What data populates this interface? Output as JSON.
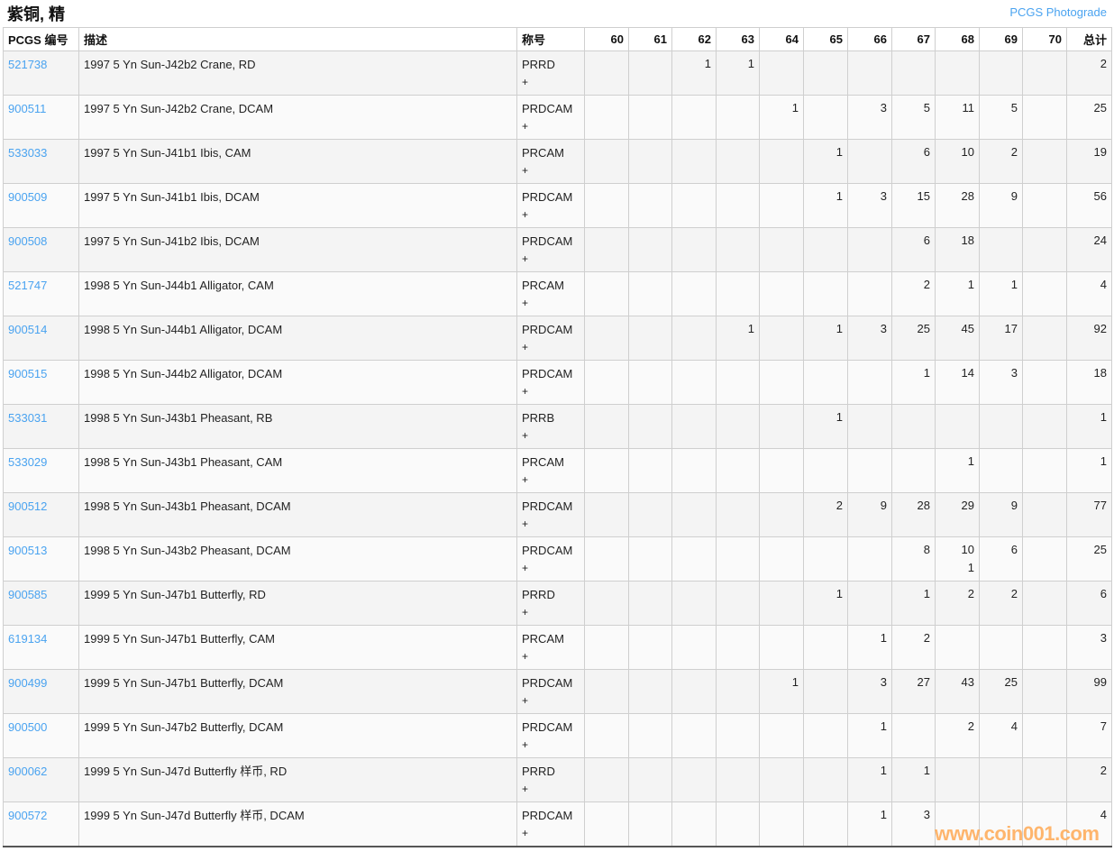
{
  "page": {
    "title": "紫铜, 精",
    "photograde_link": "PCGS Photograde",
    "watermark": "www.coin001.com"
  },
  "colors": {
    "link": "#4aa3f0",
    "row_odd": "#f4f4f4",
    "row_even": "#fafafa",
    "watermark": "#ffa54a"
  },
  "table": {
    "headers": {
      "pcgs_no": "PCGS 编号",
      "description": "描述",
      "designation": "称号",
      "grades": [
        "60",
        "61",
        "62",
        "63",
        "64",
        "65",
        "66",
        "67",
        "68",
        "69",
        "70"
      ],
      "total": "总计"
    },
    "plus_label": "+",
    "rows": [
      {
        "id": "521738",
        "desc": "1997 5 Yn Sun-J42b2 Crane, RD",
        "desig": "PRRD",
        "grades": [
          "",
          "",
          "1",
          "1",
          "",
          "",
          "",
          "",
          "",
          "",
          ""
        ],
        "total": "2"
      },
      {
        "id": "900511",
        "desc": "1997 5 Yn Sun-J42b2 Crane, DCAM",
        "desig": "PRDCAM",
        "grades": [
          "",
          "",
          "",
          "",
          "1",
          "",
          "3",
          "5",
          "11",
          "5",
          ""
        ],
        "total": "25"
      },
      {
        "id": "533033",
        "desc": "1997 5 Yn Sun-J41b1 Ibis, CAM",
        "desig": "PRCAM",
        "grades": [
          "",
          "",
          "",
          "",
          "",
          "1",
          "",
          "6",
          "10",
          "2",
          ""
        ],
        "total": "19"
      },
      {
        "id": "900509",
        "desc": "1997 5 Yn Sun-J41b1 Ibis, DCAM",
        "desig": "PRDCAM",
        "grades": [
          "",
          "",
          "",
          "",
          "",
          "1",
          "3",
          "15",
          "28",
          "9",
          ""
        ],
        "total": "56"
      },
      {
        "id": "900508",
        "desc": "1997 5 Yn Sun-J41b2 Ibis, DCAM",
        "desig": "PRDCAM",
        "grades": [
          "",
          "",
          "",
          "",
          "",
          "",
          "",
          "6",
          "18",
          "",
          ""
        ],
        "total": "24"
      },
      {
        "id": "521747",
        "desc": "1998 5 Yn Sun-J44b1 Alligator, CAM",
        "desig": "PRCAM",
        "grades": [
          "",
          "",
          "",
          "",
          "",
          "",
          "",
          "2",
          "1",
          "1",
          ""
        ],
        "total": "4"
      },
      {
        "id": "900514",
        "desc": "1998 5 Yn Sun-J44b1 Alligator, DCAM",
        "desig": "PRDCAM",
        "grades": [
          "",
          "",
          "",
          "1",
          "",
          "1",
          "3",
          "25",
          "45",
          "17",
          ""
        ],
        "total": "92"
      },
      {
        "id": "900515",
        "desc": "1998 5 Yn Sun-J44b2 Alligator, DCAM",
        "desig": "PRDCAM",
        "grades": [
          "",
          "",
          "",
          "",
          "",
          "",
          "",
          "1",
          "14",
          "3",
          ""
        ],
        "total": "18"
      },
      {
        "id": "533031",
        "desc": "1998 5 Yn Sun-J43b1 Pheasant, RB",
        "desig": "PRRB",
        "grades": [
          "",
          "",
          "",
          "",
          "",
          "1",
          "",
          "",
          "",
          "",
          ""
        ],
        "total": "1"
      },
      {
        "id": "533029",
        "desc": "1998 5 Yn Sun-J43b1 Pheasant, CAM",
        "desig": "PRCAM",
        "grades": [
          "",
          "",
          "",
          "",
          "",
          "",
          "",
          "",
          "1",
          "",
          ""
        ],
        "total": "1"
      },
      {
        "id": "900512",
        "desc": "1998 5 Yn Sun-J43b1 Pheasant, DCAM",
        "desig": "PRDCAM",
        "grades": [
          "",
          "",
          "",
          "",
          "",
          "2",
          "9",
          "28",
          "29",
          "9",
          ""
        ],
        "total": "77"
      },
      {
        "id": "900513",
        "desc": "1998 5 Yn Sun-J43b2 Pheasant, DCAM",
        "desig": "PRDCAM",
        "grades": [
          "",
          "",
          "",
          "",
          "",
          "",
          "",
          "8",
          "10\n1",
          "6",
          ""
        ],
        "total": "25"
      },
      {
        "id": "900585",
        "desc": "1999 5 Yn Sun-J47b1 Butterfly, RD",
        "desig": "PRRD",
        "grades": [
          "",
          "",
          "",
          "",
          "",
          "1",
          "",
          "1",
          "2",
          "2",
          ""
        ],
        "total": "6"
      },
      {
        "id": "619134",
        "desc": "1999 5 Yn Sun-J47b1 Butterfly, CAM",
        "desig": "PRCAM",
        "grades": [
          "",
          "",
          "",
          "",
          "",
          "",
          "1",
          "2",
          "",
          "",
          ""
        ],
        "total": "3"
      },
      {
        "id": "900499",
        "desc": "1999 5 Yn Sun-J47b1 Butterfly, DCAM",
        "desig": "PRDCAM",
        "grades": [
          "",
          "",
          "",
          "",
          "1",
          "",
          "3",
          "27",
          "43",
          "25",
          ""
        ],
        "total": "99"
      },
      {
        "id": "900500",
        "desc": "1999 5 Yn Sun-J47b2 Butterfly, DCAM",
        "desig": "PRDCAM",
        "grades": [
          "",
          "",
          "",
          "",
          "",
          "",
          "1",
          "",
          "2",
          "4",
          ""
        ],
        "total": "7"
      },
      {
        "id": "900062",
        "desc": "1999 5 Yn Sun-J47d Butterfly 样币, RD",
        "desig": "PRRD",
        "grades": [
          "",
          "",
          "",
          "",
          "",
          "",
          "1",
          "1",
          "",
          "",
          ""
        ],
        "total": "2"
      },
      {
        "id": "900572",
        "desc": "1999 5 Yn Sun-J47d Butterfly 样币, DCAM",
        "desig": "PRDCAM",
        "grades": [
          "",
          "",
          "",
          "",
          "",
          "",
          "1",
          "3",
          "",
          "",
          ""
        ],
        "total": "4"
      }
    ]
  }
}
